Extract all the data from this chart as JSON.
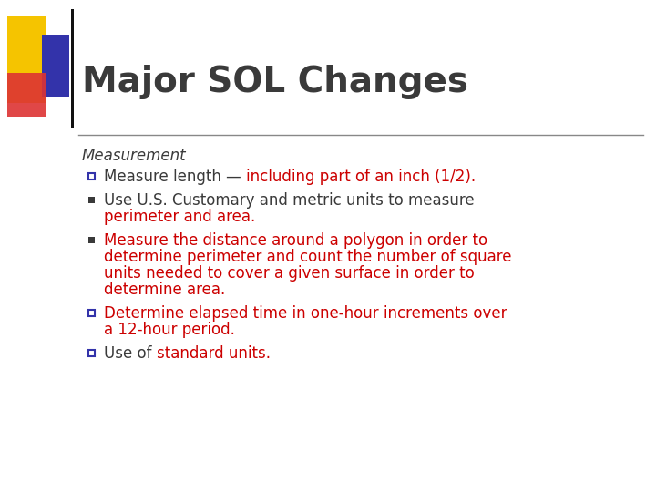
{
  "title": "Major SOL Changes",
  "title_fontsize": 28,
  "title_color": "#3a3a3a",
  "bg_color": "#ffffff",
  "section_label": "Measurement",
  "section_color": "#3a3a3a",
  "section_fontsize": 12,
  "item_fontsize": 12,
  "black": "#3a3a3a",
  "red": "#cc0000",
  "blue_bullet": "#3333aa",
  "divider_color": "#888888",
  "items": [
    {
      "bullet": "square_outline",
      "lines": [
        [
          {
            "text": "Measure length — ",
            "color": "#3a3a3a"
          },
          {
            "text": "including part of an inch (1/2).",
            "color": "#cc0000"
          }
        ]
      ]
    },
    {
      "bullet": "square_filled",
      "lines": [
        [
          {
            "text": "Use U.S. Customary and metric units to measure",
            "color": "#3a3a3a"
          }
        ],
        [
          {
            "text": "perimeter and area.",
            "color": "#cc0000"
          }
        ]
      ]
    },
    {
      "bullet": "square_filled",
      "lines": [
        [
          {
            "text": "Measure the distance around a polygon in order to",
            "color": "#cc0000"
          }
        ],
        [
          {
            "text": "determine perimeter and count the number of square",
            "color": "#cc0000"
          }
        ],
        [
          {
            "text": "units needed to cover a given surface in order to",
            "color": "#cc0000"
          }
        ],
        [
          {
            "text": "determine area.",
            "color": "#cc0000"
          }
        ]
      ]
    },
    {
      "bullet": "square_outline",
      "lines": [
        [
          {
            "text": "Determine elapsed time in one-hour increments over",
            "color": "#cc0000"
          }
        ],
        [
          {
            "text": "a 12-hour period.",
            "color": "#cc0000"
          }
        ]
      ]
    },
    {
      "bullet": "square_outline",
      "lines": [
        [
          {
            "text": "Use of ",
            "color": "#3a3a3a"
          },
          {
            "text": "standard units.",
            "color": "#cc0000"
          }
        ]
      ]
    }
  ]
}
